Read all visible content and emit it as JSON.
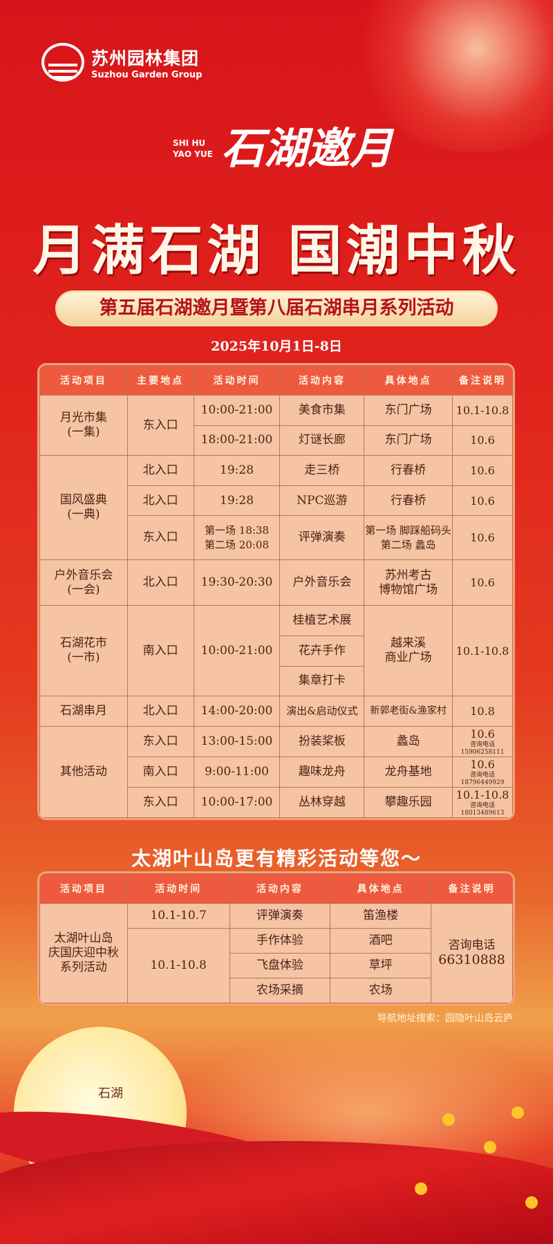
{
  "colors": {
    "background": "#d8141a",
    "header": "#ee5a3f",
    "cell": "#f6c3a5",
    "banner": "#f3d49e",
    "text": "#4a2414"
  },
  "logo": {
    "cn": "苏州园林集团",
    "en": "Suzhou Garden Group"
  },
  "brand": {
    "en_line1": "SHI HU",
    "en_line2": "YAO YUE",
    "cn": "石湖邀月"
  },
  "headline": "月满石湖 国潮中秋",
  "subtitle": "第五届石湖邀月暨第八届石湖串月系列活动",
  "date": "2025年10月1日-8日",
  "table1": {
    "headers": [
      "活动项目",
      "主要地点",
      "活动时间",
      "活动内容",
      "具体地点",
      "备注说明"
    ],
    "phone_label": "咨询电话",
    "g1": {
      "name": "月光市集",
      "sub": "(一集)",
      "entrance": "东入口",
      "rows": [
        {
          "time": "10:00-21:00",
          "content": "美食市集",
          "place": "东门广场",
          "note": "10.1-10.8"
        },
        {
          "time": "18:00-21:00",
          "content": "灯谜长廊",
          "place": "东门广场",
          "note": "10.6"
        }
      ]
    },
    "g2": {
      "name": "国风盛典",
      "sub": "(一典)",
      "rows": [
        {
          "entrance": "北入口",
          "time": "19:28",
          "content": "走三桥",
          "place": "行春桥",
          "note": "10.6"
        },
        {
          "entrance": "北入口",
          "time": "19:28",
          "content": "NPC巡游",
          "place": "行春桥",
          "note": "10.6"
        },
        {
          "entrance": "东入口",
          "time1": "第一场  18:38",
          "time2": "第二场  20:08",
          "content": "评弹演奏",
          "place1": "第一场 脚踩船码头",
          "place2": "第二场 蠡岛",
          "note": "10.6"
        }
      ]
    },
    "g3": {
      "name": "户外音乐会",
      "sub": "(一会)",
      "entrance": "北入口",
      "time": "19:30-20:30",
      "content": "户外音乐会",
      "place1": "苏州考古",
      "place2": "博物馆广场",
      "note": "10.6"
    },
    "g4": {
      "name": "石湖花市",
      "sub": "(一市)",
      "entrance": "南入口",
      "time": "10:00-21:00",
      "contents": [
        "桂植艺术展",
        "花卉手作",
        "集章打卡"
      ],
      "place1": "越来溪",
      "place2": "商业广场",
      "note": "10.1-10.8"
    },
    "g5": {
      "name": "石湖串月",
      "entrance": "北入口",
      "time": "14:00-20:00",
      "content": "演出&启动仪式",
      "place": "新郭老街&渔家村",
      "note": "10.8"
    },
    "g6": {
      "name": "其他活动",
      "rows": [
        {
          "entrance": "东入口",
          "time": "13:00-15:00",
          "content": "扮装桨板",
          "place": "蠡岛",
          "note": "10.6",
          "phone": "15906258111"
        },
        {
          "entrance": "南入口",
          "time": "9:00-11:00",
          "content": "趣味龙舟",
          "place": "龙舟基地",
          "note": "10.6",
          "phone": "18796449929"
        },
        {
          "entrance": "东入口",
          "time": "10:00-17:00",
          "content": "丛林穿越",
          "place": "攀趣乐园",
          "note": "10.1-10.8",
          "phone": "18013489613"
        }
      ]
    }
  },
  "section2_title": "太湖叶山岛更有精彩活动等您～",
  "table2": {
    "headers": [
      "活动项目",
      "活动时间",
      "活动内容",
      "具体地点",
      "备注说明"
    ],
    "name1": "太湖叶山岛",
    "name2": "庆国庆迎中秋",
    "name3": "系列活动",
    "rows": [
      {
        "time": "10.1-10.7",
        "content": "评弹演奏",
        "place": "笛渔楼"
      },
      {
        "time": "10.1-10.8",
        "content": "手作体验",
        "place": "酒吧"
      },
      {
        "content": "飞盘体验",
        "place": "草坪"
      },
      {
        "content": "农场采摘",
        "place": "农场"
      }
    ],
    "note1": "咨询电话",
    "note2": "66310888"
  },
  "nav_text": "导航地址搜索：园隐叶山岛云庐",
  "seal_text": "石湖"
}
